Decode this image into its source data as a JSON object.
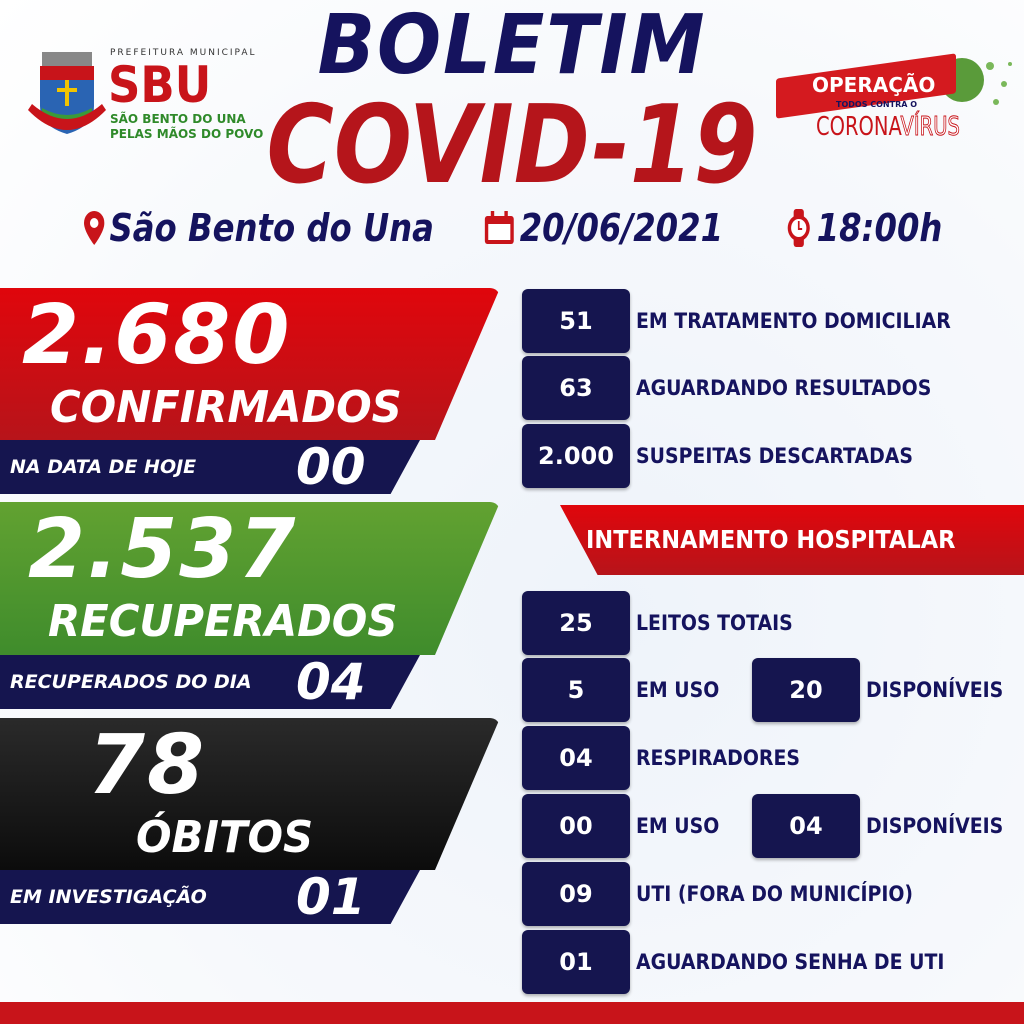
{
  "header": {
    "logo_top": "PREFEITURA MUNICIPAL",
    "logo_main": "SBU",
    "logo_line1": "SÃO BENTO DO UNA",
    "logo_line2": "PELAS MÃOS DO POVO",
    "title_line1": "BOLETIM",
    "title_line2": "COVID-19",
    "badge_top": "OPERAÇÃO",
    "badge_mid": "TODOS CONTRA O",
    "badge_bottom_a": "CORONA",
    "badge_bottom_b": "VÍRUS"
  },
  "info": {
    "location": "São Bento do Una",
    "date": "20/06/2021",
    "time": "18:00h",
    "icons": [
      "map-pin-icon",
      "calendar-icon",
      "clock-icon"
    ]
  },
  "left": [
    {
      "value": "2.680",
      "label": "CONFIRMADOS",
      "sub_label": "NA DATA DE HOJE",
      "sub_value": "00",
      "color": "#d10d12"
    },
    {
      "value": "2.537",
      "label": "RECUPERADOS",
      "sub_label": "RECUPERADOS DO DIA",
      "sub_value": "04",
      "color": "#4f9a2e"
    },
    {
      "value": "78",
      "label": "ÓBITOS",
      "sub_label": "EM INVESTIGAÇÃO",
      "sub_value": "01",
      "color": "#151515"
    }
  ],
  "right_top": [
    {
      "value": "51",
      "label": "EM TRATAMENTO DOMICILIAR"
    },
    {
      "value": "63",
      "label": "AGUARDANDO RESULTADOS"
    },
    {
      "value": "2.000",
      "label": "SUSPEITAS DESCARTADAS"
    }
  ],
  "hospital": {
    "title": "INTERNAMENTO HOSPITALAR",
    "beds_total": {
      "value": "25",
      "label": "LEITOS TOTAIS"
    },
    "beds_use": {
      "value": "5",
      "label": "EM USO",
      "free_value": "20",
      "free_label": "DISPONÍVEIS"
    },
    "resp_total": {
      "value": "04",
      "label": "RESPIRADORES"
    },
    "resp_use": {
      "value": "00",
      "label": "EM USO",
      "free_value": "04",
      "free_label": "DISPONÍVEIS"
    },
    "uti": {
      "value": "09",
      "label": "UTI (FORA DO MUNICÍPIO)"
    },
    "waiting": {
      "value": "01",
      "label": "AGUARDANDO SENHA DE UTI"
    }
  },
  "colors": {
    "navy": "#15154f",
    "red": "#c8141a",
    "green": "#4f9a2e"
  }
}
